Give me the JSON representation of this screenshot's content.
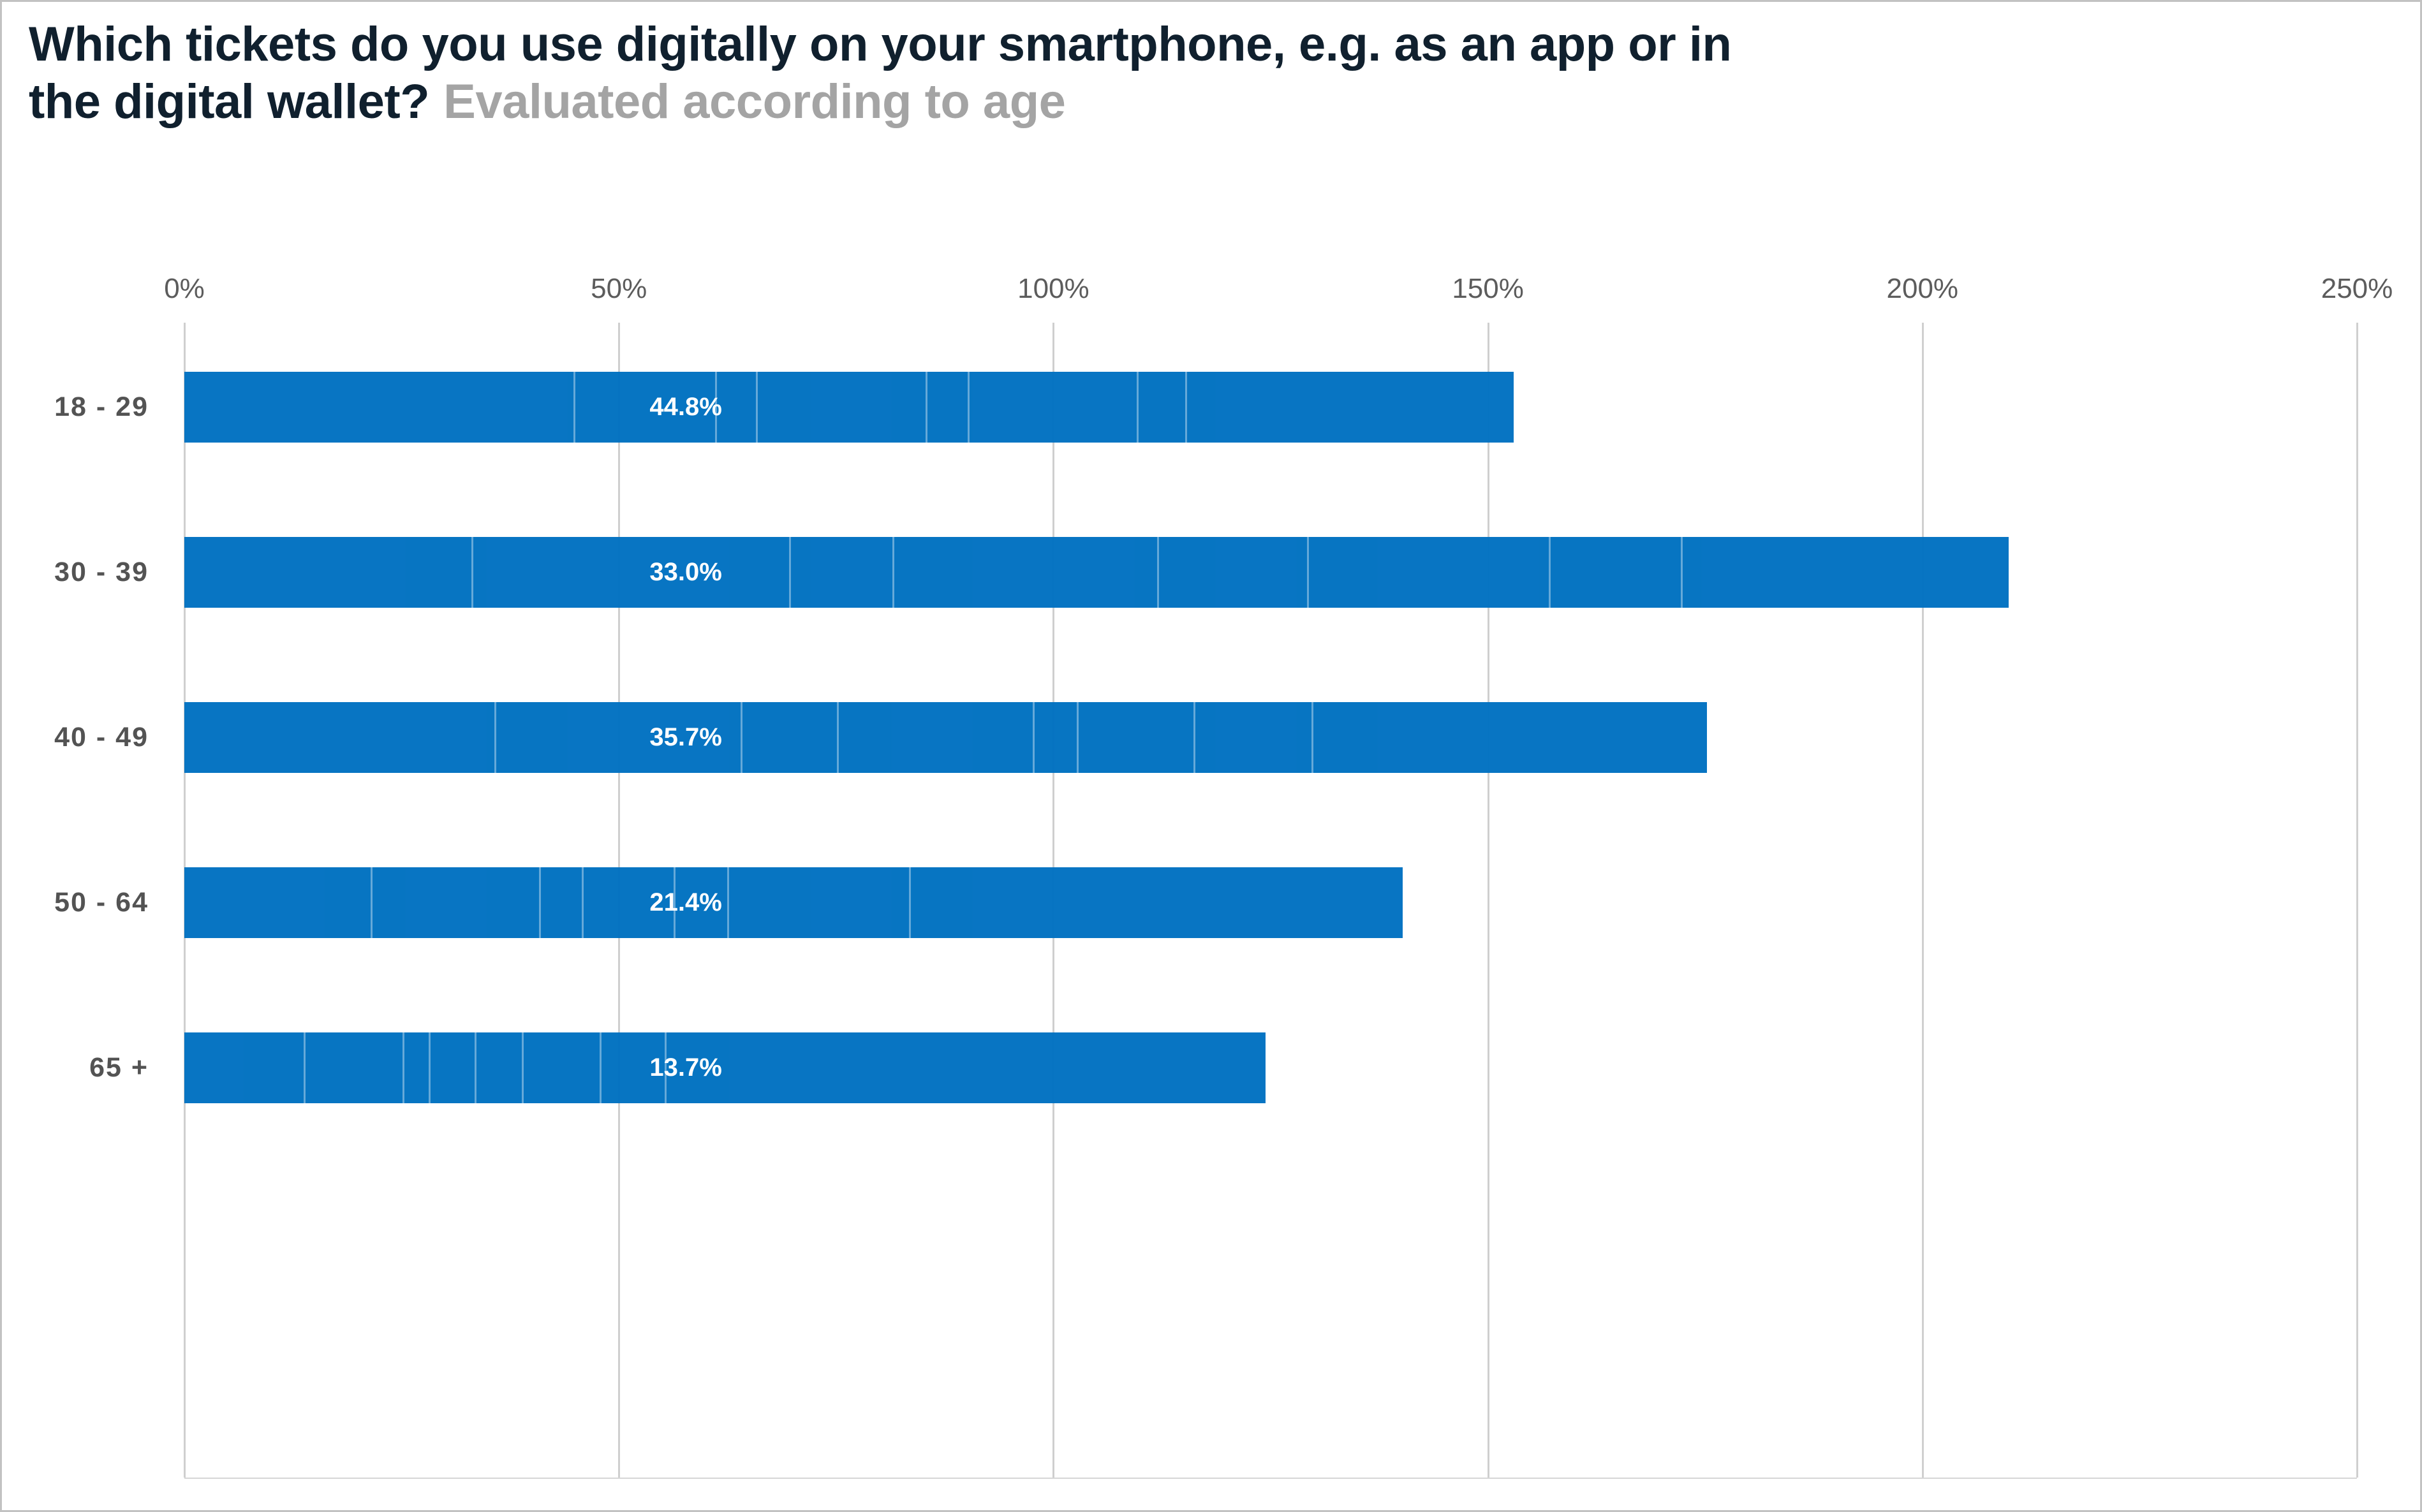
{
  "title": {
    "question_line1": "Which tickets do you use digitally on your smartphone, e.g. as an app or in",
    "question_line2": "the digital wallet?",
    "subtitle": "Evaluated according to age"
  },
  "colors": {
    "bar": "#0071c1",
    "bar_label_text": "#ffffff",
    "title_text": "#10202e",
    "subtitle_text": "#a4a4a4",
    "axis_text": "#5c5c5c",
    "category_text": "#535353",
    "gridline": "#cfcfcf",
    "baseline": "#d6d6d6"
  },
  "chart_data": {
    "type": "bar",
    "orientation": "horizontal",
    "stacked": true,
    "title": "Which tickets do you use digitally on your smartphone, e.g. as an app or in the digital wallet?",
    "subtitle": "Evaluated according to age",
    "xlabel": "",
    "ylabel": "",
    "legend": "none",
    "axis": {
      "min": 0,
      "max": 250,
      "tick_step": 50,
      "tick_labels": [
        "0%",
        "50%",
        "100%",
        "150%",
        "200%",
        "250%"
      ],
      "grid": true,
      "position": "top"
    },
    "categories": [
      "18 - 29",
      "30 - 39",
      "40 - 49",
      "50 - 64",
      "65 +"
    ],
    "bars": [
      {
        "category": "18 - 29",
        "label": "44.8%",
        "labeled_value": 44.8,
        "segment_boundaries_pct": [
          44.8,
          61.1,
          65.8,
          85.3,
          90.1,
          109.6,
          115.2
        ],
        "total_pct": 153.0
      },
      {
        "category": "30 - 39",
        "label": "33.0%",
        "labeled_value": 33.0,
        "segment_boundaries_pct": [
          33.0,
          69.6,
          81.5,
          111.9,
          129.2,
          157.0,
          172.2
        ],
        "total_pct": 209.9
      },
      {
        "category": "40 - 49",
        "label": "35.7%",
        "labeled_value": 35.7,
        "segment_boundaries_pct": [
          35.7,
          64.0,
          75.1,
          97.6,
          102.7,
          116.1,
          129.7
        ],
        "total_pct": 175.2
      },
      {
        "category": "50 - 64",
        "label": "21.4%",
        "labeled_value": 21.4,
        "segment_boundaries_pct": [
          21.4,
          40.8,
          45.7,
          56.3,
          62.5,
          83.4
        ],
        "total_pct": 140.2
      },
      {
        "category": "65 +",
        "label": "13.7%",
        "labeled_value": 13.7,
        "segment_boundaries_pct": [
          13.7,
          25.1,
          28.1,
          33.4,
          38.8,
          47.8,
          55.3
        ],
        "total_pct": 124.4
      }
    ],
    "value_label_axis_position_pct": 57.7
  }
}
